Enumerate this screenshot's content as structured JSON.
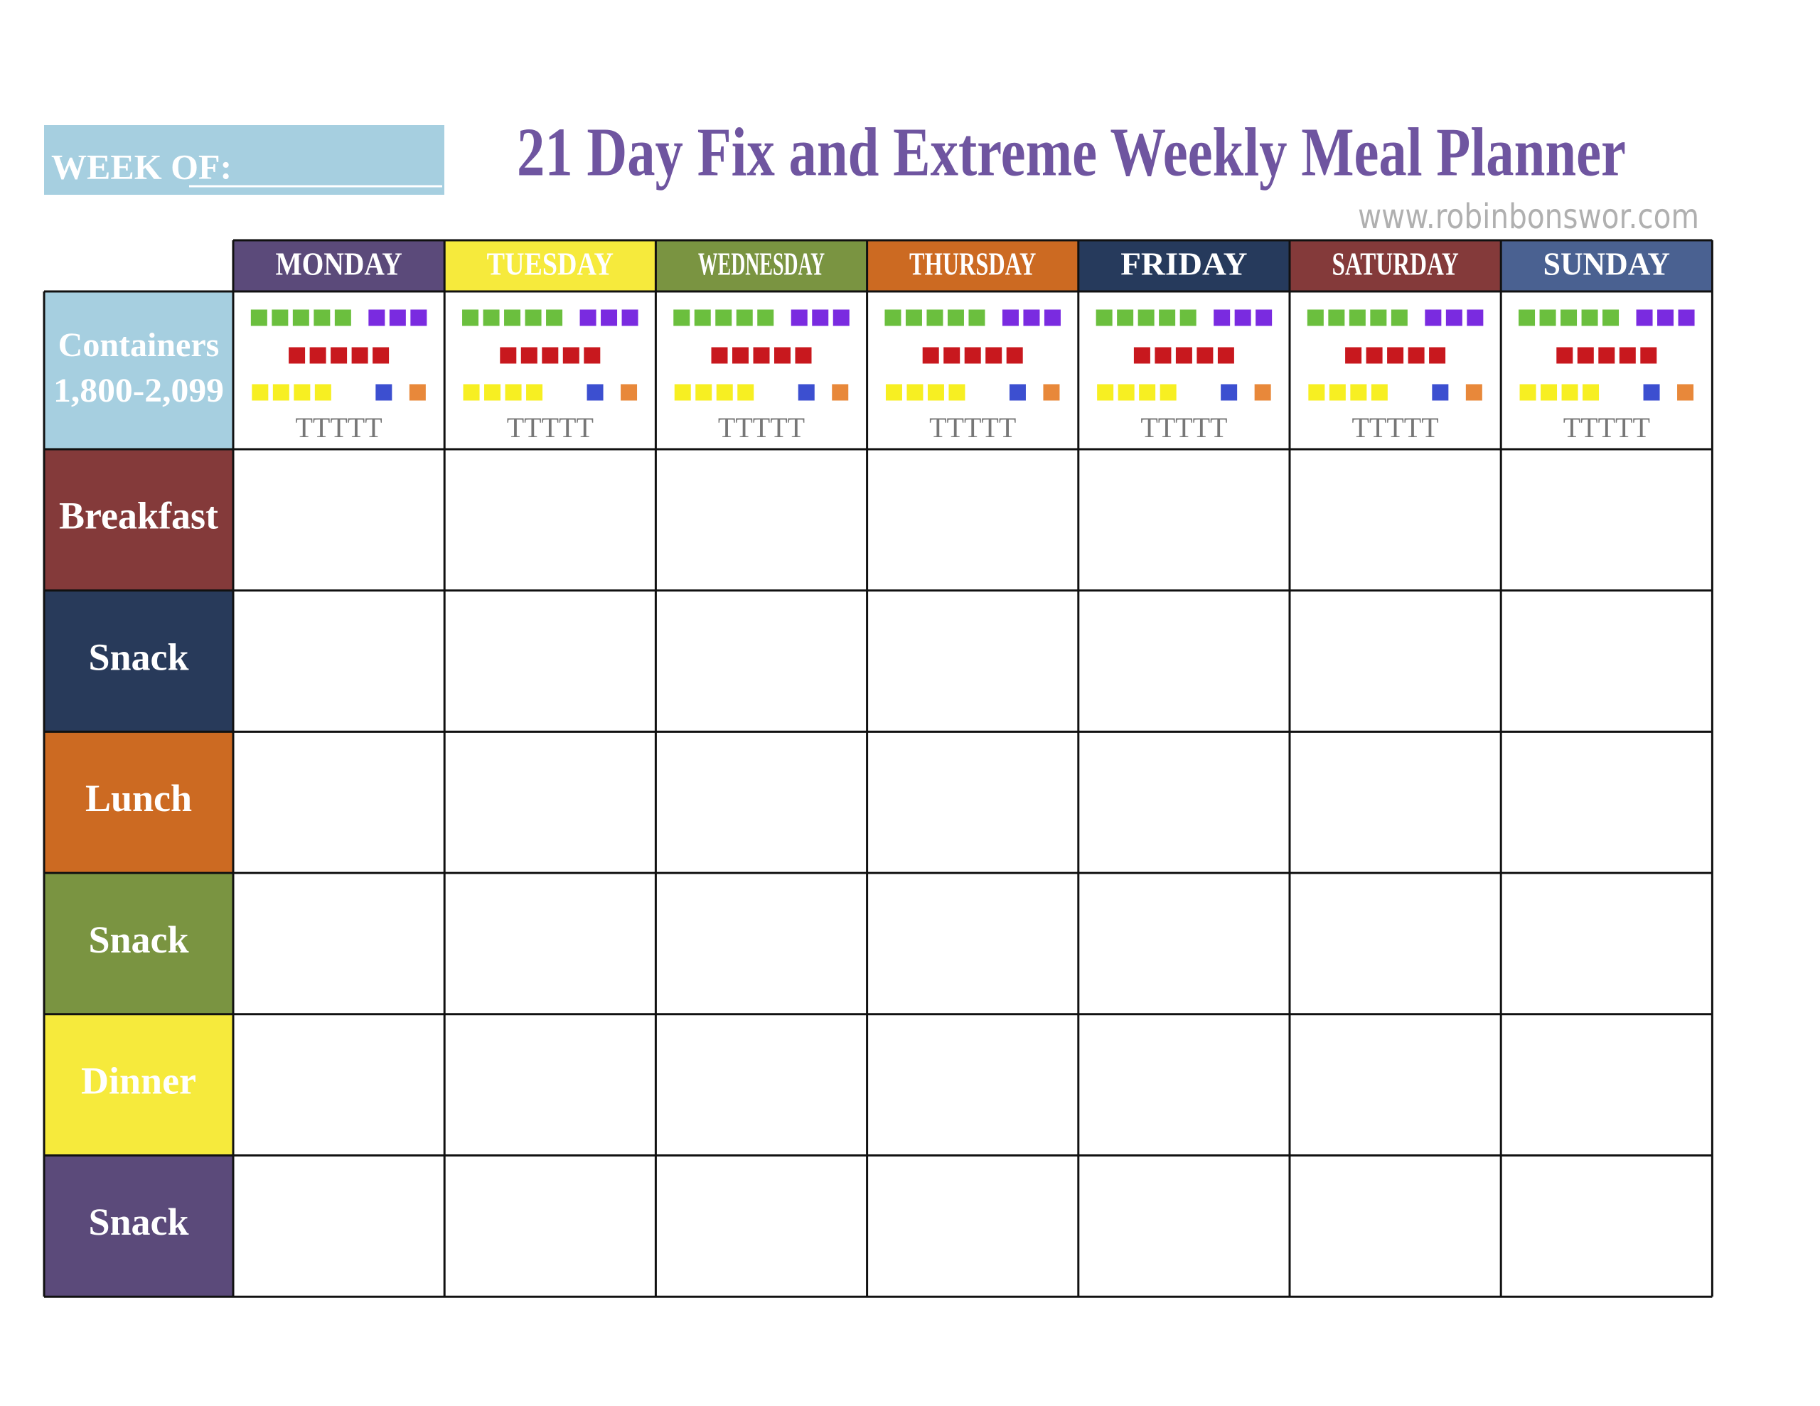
{
  "header": {
    "week_of": "WEEK OF:",
    "title": "21 Day Fix and Extreme Weekly Meal Planner",
    "url": "www.robinbonswor.com"
  },
  "table": {
    "days": [
      {
        "label": "MONDAY",
        "color": "#5b4a7a"
      },
      {
        "label": "TUESDAY",
        "color": "#f6ea3c"
      },
      {
        "label": "WEDNESDAY",
        "color": "#7a9441"
      },
      {
        "label": "THURSDAY",
        "color": "#cc6a22"
      },
      {
        "label": "FRIDAY",
        "color": "#263a5c"
      },
      {
        "label": "SATURDAY",
        "color": "#843a3a"
      },
      {
        "label": "SUNDAY",
        "color": "#4a6191"
      }
    ],
    "containers": {
      "label": "Containers",
      "range": "1,800-2,099",
      "color": "#a6cfe0",
      "squares": [
        [
          {
            "color": "#6bbf3e",
            "count": 5
          },
          {
            "color": "#7a2be0",
            "count": 3
          }
        ],
        [
          {
            "color": "#c8181e",
            "count": 5
          }
        ],
        [
          {
            "color": "#f7ef22",
            "count": 4
          },
          {
            "color": "#3c4fd0",
            "count": 1
          },
          {
            "color": "#e8883a",
            "count": 1
          }
        ]
      ],
      "teaspoons": "TTTTT"
    },
    "meals": [
      {
        "label": "Breakfast",
        "color": "#843a3a"
      },
      {
        "label": "Snack",
        "color": "#283a5a"
      },
      {
        "label": "Lunch",
        "color": "#cc6a22"
      },
      {
        "label": "Snack",
        "color": "#7a9441"
      },
      {
        "label": "Dinner",
        "color": "#f6ea3c"
      },
      {
        "label": "Snack",
        "color": "#5b4a7a"
      }
    ]
  }
}
